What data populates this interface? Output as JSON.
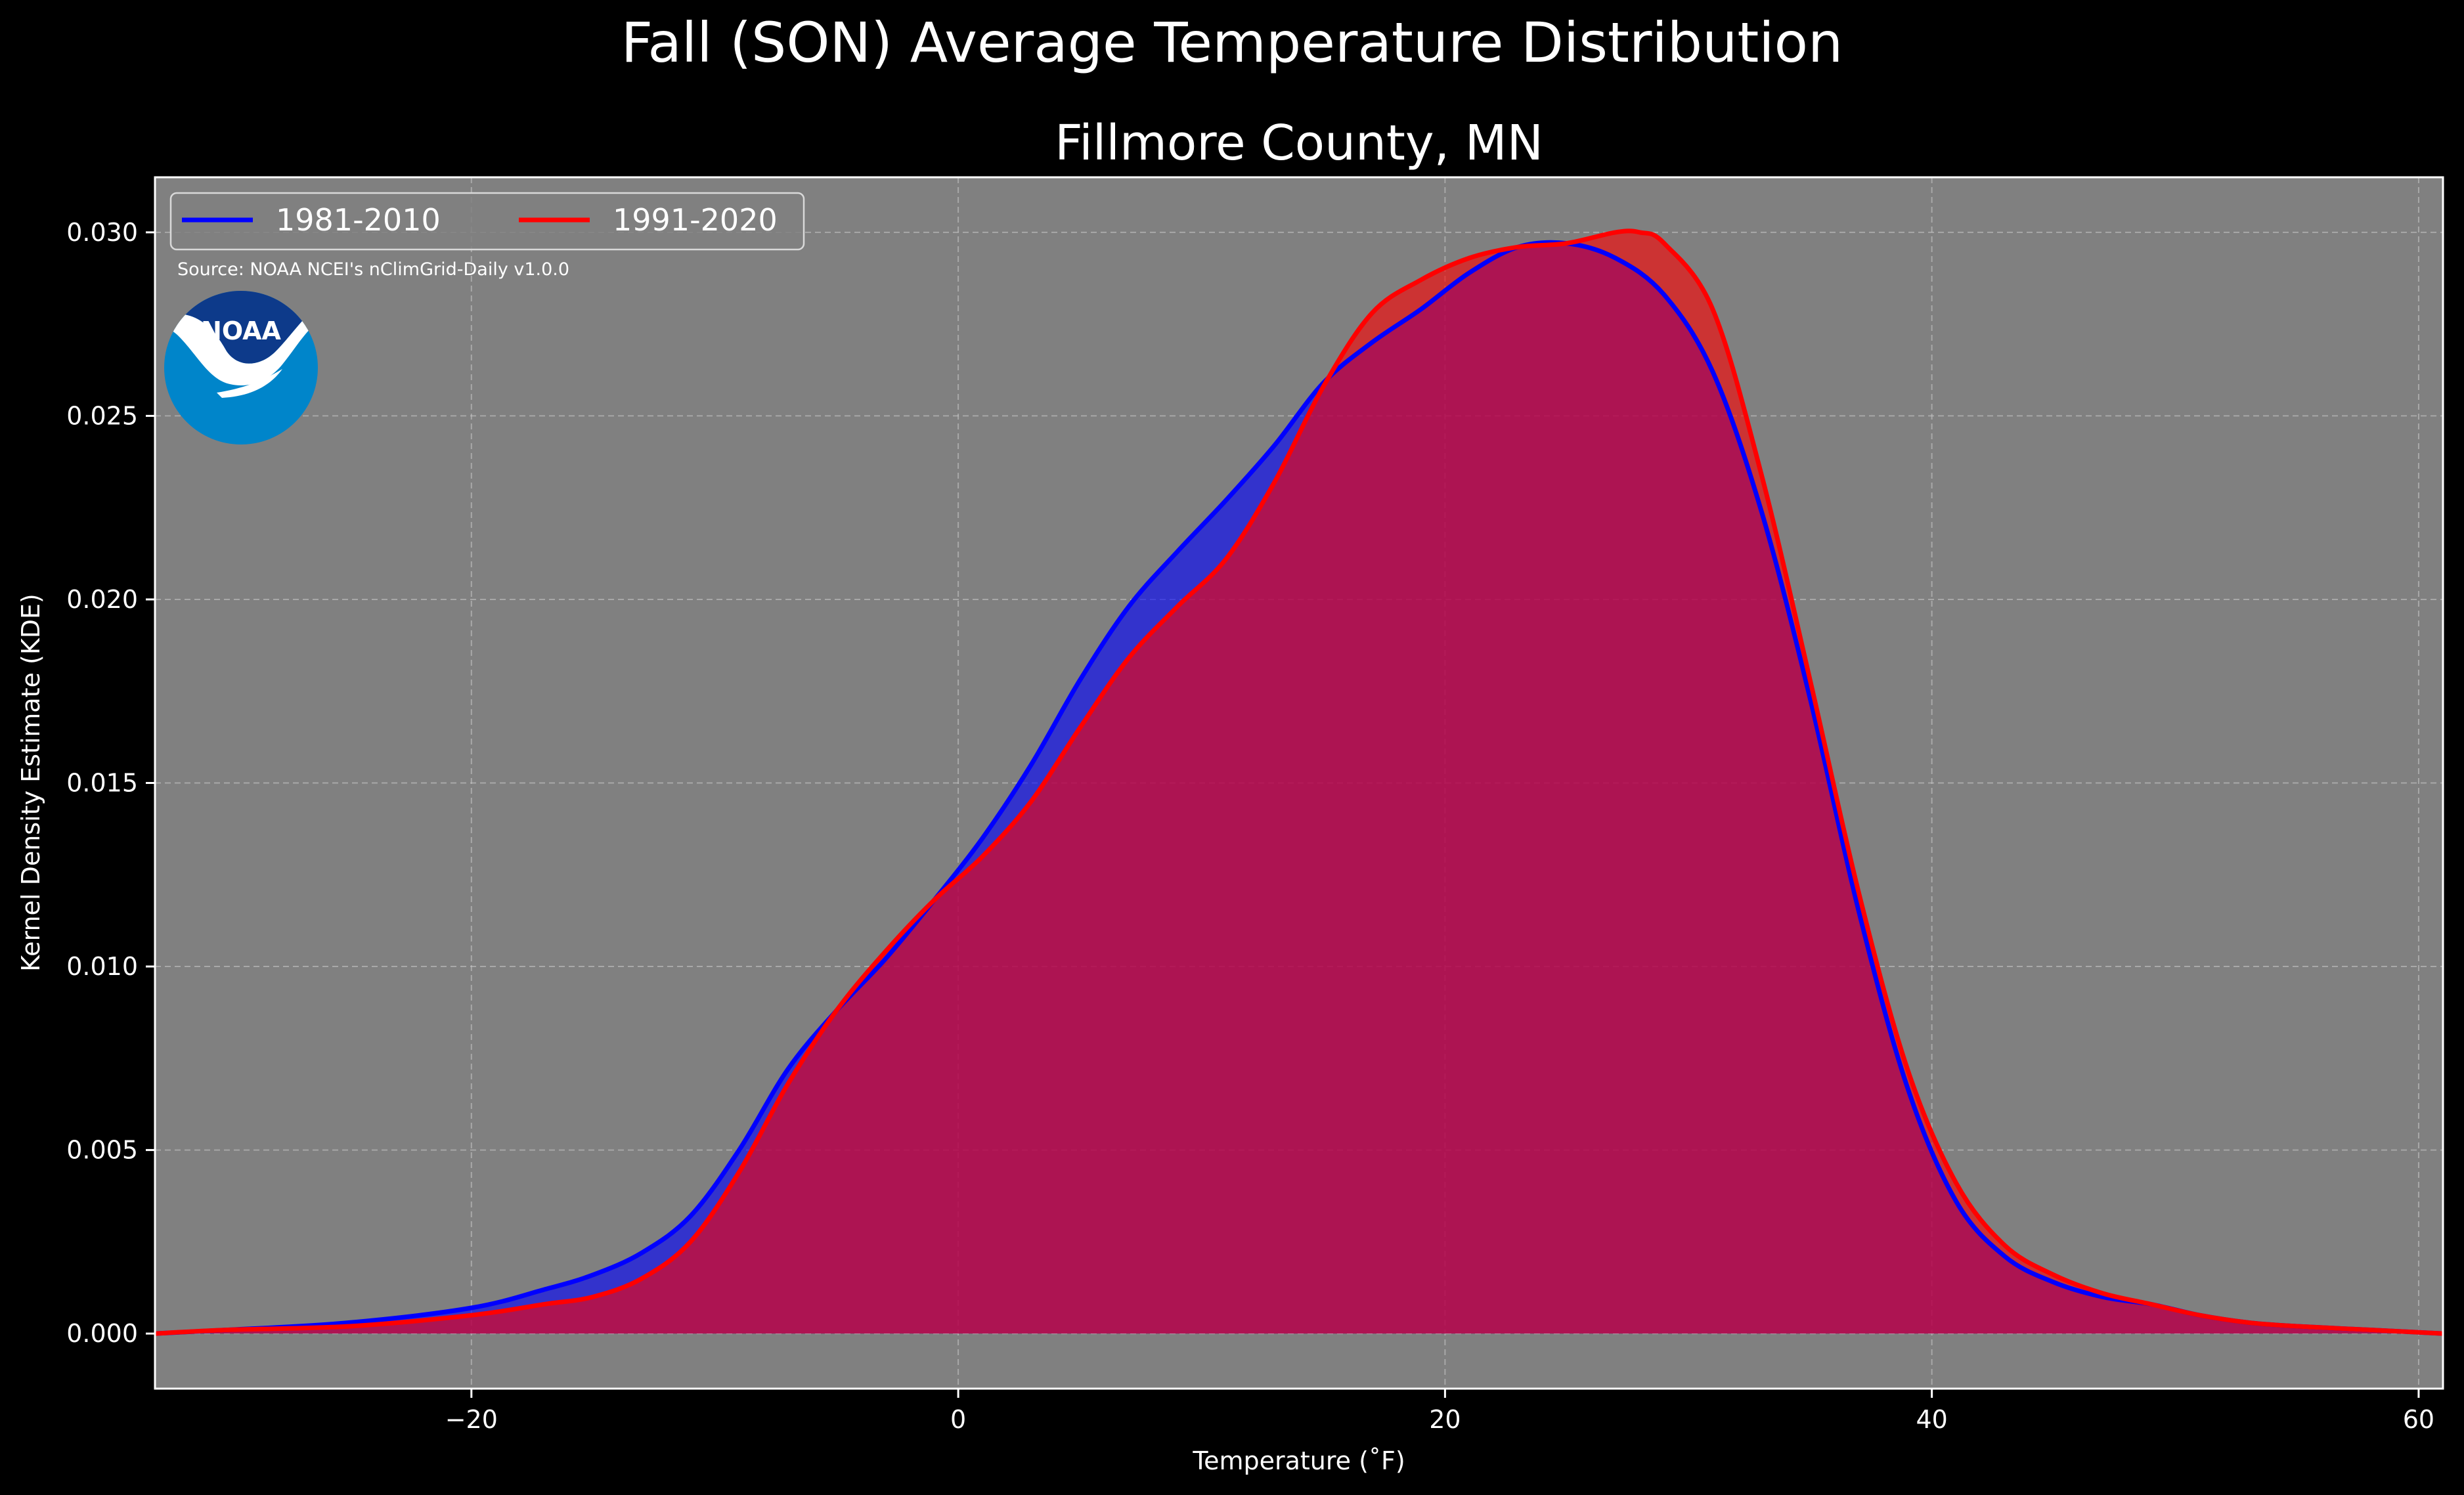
{
  "chart_data": {
    "type": "area",
    "title": "Fall (SON) Average Temperature Distribution",
    "subtitle": "Fillmore County, MN",
    "xlabel": "Temperature ($^\\circ$F)",
    "xlabel_display": "Temperature (˚F)",
    "ylabel": "Kernel Density Estimate (KDE)",
    "xlim": [
      -33,
      61
    ],
    "ylim": [
      -0.0015,
      0.0315
    ],
    "xticks": [
      -20,
      0,
      20,
      40,
      60
    ],
    "xtick_labels": [
      "−20",
      "0",
      "20",
      "40",
      "60"
    ],
    "yticks": [
      0.0,
      0.005,
      0.01,
      0.015,
      0.02,
      0.025,
      0.03
    ],
    "ytick_labels": [
      "0.000",
      "0.005",
      "0.010",
      "0.015",
      "0.020",
      "0.025",
      "0.030"
    ],
    "grid": true,
    "legend_position": "top-left",
    "annotation": "Source: NOAA NCEI's nClimGrid-Daily v1.0.0",
    "logo_text": "NOAA",
    "background_color": "#000000",
    "plot_background_color": "#808080",
    "series": [
      {
        "name": "1981-2010",
        "color": "#0000ff",
        "x": [
          -33,
          -30,
          -25,
          -20,
          -17,
          -15,
          -13,
          -11,
          -9,
          -7,
          -5,
          -3,
          -1,
          1,
          3,
          5,
          7,
          9,
          11,
          13,
          15,
          17,
          19,
          21,
          23,
          25,
          27,
          29,
          31,
          33,
          35,
          37,
          39,
          41,
          43,
          45,
          47,
          49,
          51,
          53,
          55,
          58,
          61
        ],
        "y": [
          0.0,
          0.0001,
          0.0003,
          0.0007,
          0.0012,
          0.0016,
          0.0022,
          0.0032,
          0.005,
          0.0072,
          0.0088,
          0.0102,
          0.0118,
          0.0135,
          0.0155,
          0.0178,
          0.0198,
          0.0213,
          0.0227,
          0.0242,
          0.0259,
          0.027,
          0.0279,
          0.0289,
          0.0296,
          0.0297,
          0.0293,
          0.0283,
          0.0262,
          0.0224,
          0.0173,
          0.0115,
          0.0067,
          0.0036,
          0.0021,
          0.0014,
          0.001,
          0.0008,
          0.0005,
          0.0003,
          0.0002,
          0.0001,
          0.0
        ]
      },
      {
        "name": "1991-2020",
        "color": "#ff0000",
        "x": [
          -33,
          -30,
          -25,
          -20,
          -17,
          -15,
          -13,
          -11,
          -9,
          -7,
          -5,
          -3,
          -1,
          1,
          3,
          5,
          7,
          9,
          11,
          13,
          15,
          17,
          19,
          21,
          23,
          25,
          27,
          28,
          29,
          31,
          33,
          35,
          37,
          39,
          41,
          43,
          45,
          47,
          49,
          51,
          53,
          55,
          58,
          61
        ],
        "y": [
          0.0,
          0.0001,
          0.0002,
          0.0005,
          0.0008,
          0.001,
          0.0015,
          0.0025,
          0.0044,
          0.0068,
          0.0088,
          0.0104,
          0.0118,
          0.013,
          0.0145,
          0.0165,
          0.0184,
          0.0198,
          0.0211,
          0.0232,
          0.0258,
          0.0278,
          0.0287,
          0.0293,
          0.0296,
          0.0297,
          0.03,
          0.03,
          0.0297,
          0.0279,
          0.0234,
          0.0178,
          0.012,
          0.0072,
          0.0041,
          0.0024,
          0.0016,
          0.0011,
          0.0008,
          0.0005,
          0.0003,
          0.0002,
          0.0001,
          0.0
        ]
      }
    ]
  }
}
